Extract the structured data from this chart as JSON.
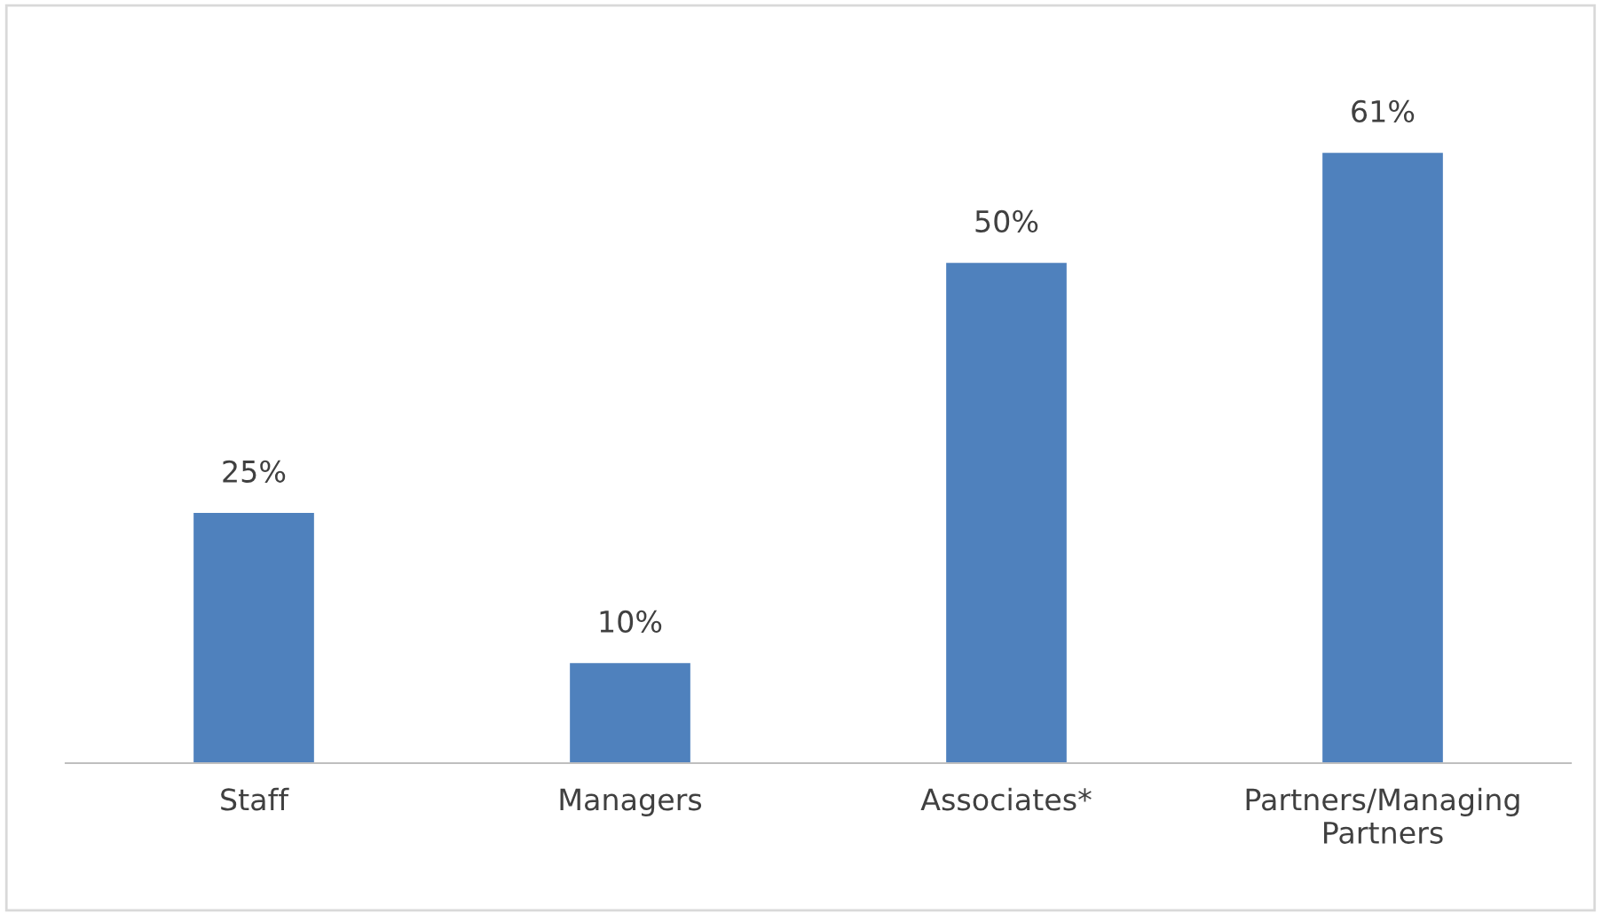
{
  "chart_data": {
    "type": "bar",
    "categories": [
      "Staff",
      "Managers",
      "Associates*",
      "Partners/Managing\nPartners"
    ],
    "values": [
      25,
      10,
      50,
      61
    ],
    "value_labels": [
      "25%",
      "10%",
      "50%",
      "61%"
    ],
    "color": "#4f81bd",
    "grid": false,
    "legend": false
  }
}
